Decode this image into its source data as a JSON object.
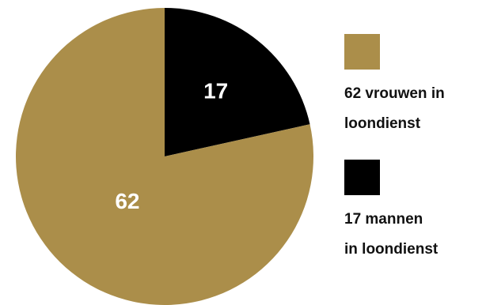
{
  "chart_data": {
    "type": "pie",
    "title": "",
    "slices": [
      {
        "label": "62 vrouwen in loondienst",
        "legend_lines": [
          "62 vrouwen in",
          "loondienst"
        ],
        "value": 62,
        "display": "62",
        "color": "#ab8e4a"
      },
      {
        "label": "17 mannen in loondienst",
        "legend_lines": [
          "17 mannen",
          "in loondienst"
        ],
        "value": 17,
        "display": "17",
        "color": "#000000"
      }
    ],
    "start": "12 o'clock",
    "direction": "clockwise, starting with the second slice",
    "legend_placement": "right"
  }
}
